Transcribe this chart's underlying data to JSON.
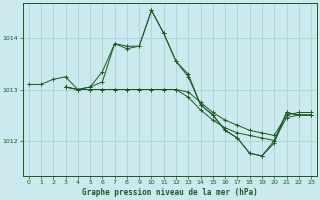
{
  "background_color": "#cce9f0",
  "grid_color": "#99ccbb",
  "line_color": "#1a5c1a",
  "marker_color": "#1a5c1a",
  "title": "Graphe pression niveau de la mer (hPa)",
  "xlim": [
    -0.5,
    23.5
  ],
  "ylim": [
    1011.3,
    1014.7
  ],
  "yticks": [
    1012,
    1013,
    1014
  ],
  "xticks": [
    0,
    1,
    2,
    3,
    4,
    5,
    6,
    7,
    8,
    9,
    10,
    11,
    12,
    13,
    14,
    15,
    16,
    17,
    18,
    19,
    20,
    21,
    22,
    23
  ],
  "series": [
    {
      "x": [
        0,
        1,
        2,
        3,
        4,
        5,
        6,
        7,
        8,
        9,
        10,
        11,
        12,
        13,
        14,
        15,
        16,
        17,
        18,
        19,
        20,
        21,
        22,
        23
      ],
      "y": [
        1013.1,
        1013.1,
        1013.2,
        1013.25,
        1013.0,
        1013.05,
        1013.35,
        1013.9,
        1013.8,
        1013.85,
        1014.55,
        1014.1,
        1013.55,
        1013.3,
        1012.7,
        1012.5,
        1012.2,
        1012.05,
        1011.75,
        1011.7,
        1012.0,
        1012.55,
        1012.5,
        1012.5
      ]
    },
    {
      "x": [
        3,
        4,
        5,
        6,
        7,
        8,
        9,
        10,
        11,
        12,
        13,
        14,
        15,
        16,
        17,
        18,
        19,
        20,
        21,
        22,
        23
      ],
      "y": [
        1013.05,
        1013.0,
        1013.05,
        1013.15,
        1013.9,
        1013.85,
        1013.85,
        1014.55,
        1014.1,
        1013.55,
        1013.25,
        1012.7,
        1012.5,
        1012.2,
        1012.05,
        1011.75,
        1011.7,
        1011.95,
        1012.55,
        1012.5,
        1012.5
      ]
    },
    {
      "x": [
        3,
        4,
        5,
        6,
        7,
        8,
        9,
        10,
        11,
        12,
        13,
        14,
        15,
        16,
        17,
        18,
        19,
        20,
        21,
        22,
        23
      ],
      "y": [
        1013.05,
        1013.0,
        1013.0,
        1013.0,
        1013.0,
        1013.0,
        1013.0,
        1013.0,
        1013.0,
        1013.0,
        1012.95,
        1012.75,
        1012.55,
        1012.4,
        1012.3,
        1012.2,
        1012.15,
        1012.1,
        1012.5,
        1012.55,
        1012.55
      ]
    },
    {
      "x": [
        3,
        4,
        5,
        6,
        7,
        8,
        9,
        10,
        11,
        12,
        13,
        14,
        15,
        16,
        17,
        18,
        19,
        20,
        21,
        22,
        23
      ],
      "y": [
        1013.05,
        1013.0,
        1013.0,
        1013.0,
        1013.0,
        1013.0,
        1013.0,
        1013.0,
        1013.0,
        1013.0,
        1012.85,
        1012.6,
        1012.4,
        1012.25,
        1012.15,
        1012.1,
        1012.05,
        1012.0,
        1012.45,
        1012.5,
        1012.5
      ]
    }
  ]
}
